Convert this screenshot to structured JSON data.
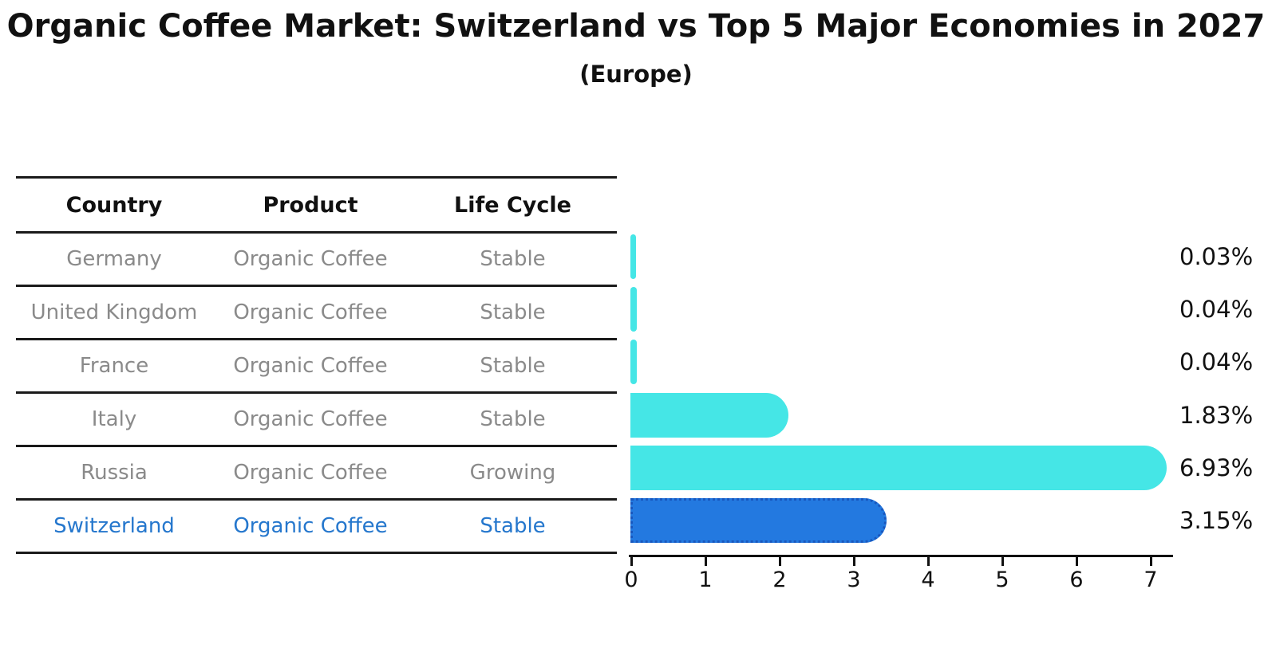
{
  "title": "Organic Coffee Market: Switzerland vs Top 5 Major Economies in 2027",
  "subtitle": "(Europe)",
  "table": {
    "headers": [
      "Country",
      "Product",
      "Life Cycle"
    ],
    "rows": [
      {
        "country": "Germany",
        "product": "Organic Coffee",
        "life_cycle": "Stable",
        "highlight": false
      },
      {
        "country": "United Kingdom",
        "product": "Organic Coffee",
        "life_cycle": "Stable",
        "highlight": false
      },
      {
        "country": "France",
        "product": "Organic Coffee",
        "life_cycle": "Stable",
        "highlight": false
      },
      {
        "country": "Italy",
        "product": "Organic Coffee",
        "life_cycle": "Stable",
        "highlight": false
      },
      {
        "country": "Russia",
        "product": "Organic Coffee",
        "life_cycle": "Growing",
        "highlight": false
      },
      {
        "country": "Switzerland",
        "product": "Organic Coffee",
        "life_cycle": "Stable",
        "highlight": true
      }
    ]
  },
  "chart_data": {
    "type": "bar",
    "orientation": "horizontal",
    "title": "Organic Coffee Market: Switzerland vs Top 5 Major Economies in 2027",
    "subtitle": "(Europe)",
    "categories": [
      "Germany",
      "United Kingdom",
      "France",
      "Italy",
      "Russia",
      "Switzerland"
    ],
    "values": [
      0.03,
      0.04,
      0.04,
      1.83,
      6.93,
      3.15
    ],
    "value_labels": [
      "0.03%",
      "0.04%",
      "0.04%",
      "1.83%",
      "6.93%",
      "3.15%"
    ],
    "x_ticks": [
      "0",
      "1",
      "2",
      "3",
      "4",
      "5",
      "6",
      "7"
    ],
    "xlim": [
      0,
      7.3
    ],
    "grid": false,
    "legend": false,
    "highlight_category": "Switzerland"
  },
  "colors": {
    "bar_default": "#45E6E6",
    "bar_highlight": "#2379E0",
    "highlight_border": "#1857BE",
    "highlight_text": "#2577CD",
    "table_text": "#8A8A8A",
    "heading_text": "#111111",
    "line": "#1A1A1A"
  }
}
